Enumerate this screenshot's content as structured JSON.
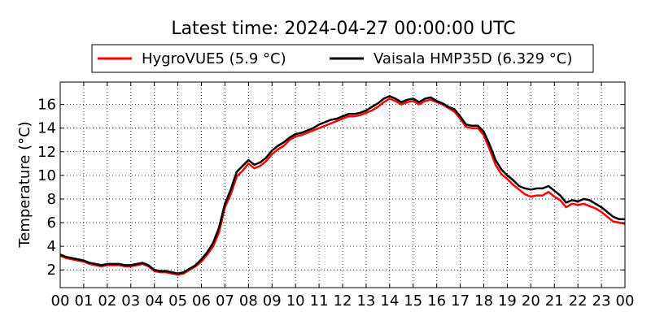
{
  "chart_data": {
    "type": "line",
    "title": "Latest time: 2024-04-27 00:00:00 UTC",
    "ylabel": "Temperature (°C)",
    "xlabel": "",
    "xlim": [
      0,
      24
    ],
    "ylim": [
      0.5,
      17.9
    ],
    "x_ticks": [
      "00",
      "01",
      "02",
      "03",
      "04",
      "05",
      "06",
      "07",
      "08",
      "09",
      "10",
      "11",
      "12",
      "13",
      "14",
      "15",
      "16",
      "17",
      "18",
      "19",
      "20",
      "21",
      "22",
      "23",
      "00"
    ],
    "y_ticks": [
      2,
      4,
      6,
      8,
      10,
      12,
      14,
      16
    ],
    "grid": true,
    "legend_position": "top",
    "series": [
      {
        "name": "HygroVUE5 (5.9 °C)",
        "color": "#ff0000",
        "x": [
          0,
          0.25,
          0.5,
          0.75,
          1,
          1.25,
          1.5,
          1.75,
          2,
          2.25,
          2.5,
          2.75,
          3,
          3.25,
          3.5,
          3.75,
          4,
          4.25,
          4.5,
          4.75,
          5,
          5.25,
          5.5,
          5.75,
          6,
          6.25,
          6.5,
          6.75,
          7,
          7.25,
          7.5,
          7.75,
          8,
          8.25,
          8.5,
          8.75,
          9,
          9.25,
          9.5,
          9.75,
          10,
          10.25,
          10.5,
          10.75,
          11,
          11.25,
          11.5,
          11.75,
          12,
          12.25,
          12.5,
          12.75,
          13,
          13.25,
          13.5,
          13.75,
          14,
          14.25,
          14.5,
          14.75,
          15,
          15.25,
          15.5,
          15.75,
          16,
          16.25,
          16.5,
          16.75,
          17,
          17.25,
          17.5,
          17.75,
          18,
          18.25,
          18.5,
          18.75,
          19,
          19.25,
          19.5,
          19.75,
          20,
          20.25,
          20.5,
          20.75,
          21,
          21.25,
          21.5,
          21.75,
          22,
          22.25,
          22.5,
          22.75,
          23,
          23.25,
          23.5,
          23.75,
          24
        ],
        "values": [
          3.2,
          3.0,
          2.9,
          2.8,
          2.7,
          2.5,
          2.4,
          2.3,
          2.4,
          2.4,
          2.4,
          2.3,
          2.3,
          2.4,
          2.5,
          2.3,
          1.9,
          1.8,
          1.8,
          1.7,
          1.6,
          1.7,
          2.0,
          2.3,
          2.7,
          3.3,
          4.0,
          5.2,
          7.3,
          8.4,
          9.9,
          10.4,
          11.0,
          10.6,
          10.8,
          11.2,
          11.8,
          12.2,
          12.5,
          13.0,
          13.3,
          13.4,
          13.6,
          13.8,
          14.0,
          14.2,
          14.4,
          14.6,
          14.8,
          15.0,
          15.0,
          15.1,
          15.3,
          15.5,
          15.8,
          16.2,
          16.5,
          16.3,
          16.0,
          16.2,
          16.3,
          16.0,
          16.3,
          16.4,
          16.2,
          16.0,
          15.7,
          15.4,
          14.8,
          14.1,
          14.0,
          14.0,
          13.4,
          12.2,
          10.9,
          10.1,
          9.7,
          9.2,
          8.8,
          8.4,
          8.2,
          8.3,
          8.3,
          8.6,
          8.2,
          7.9,
          7.3,
          7.6,
          7.5,
          7.6,
          7.4,
          7.2,
          6.9,
          6.5,
          6.1,
          6.0,
          5.9
        ]
      },
      {
        "name": "Vaisala HMP35D (6.329 °C)",
        "color": "#000000",
        "x": [
          0,
          0.25,
          0.5,
          0.75,
          1,
          1.25,
          1.5,
          1.75,
          2,
          2.25,
          2.5,
          2.75,
          3,
          3.25,
          3.5,
          3.75,
          4,
          4.25,
          4.5,
          4.75,
          5,
          5.25,
          5.5,
          5.75,
          6,
          6.25,
          6.5,
          6.75,
          7,
          7.25,
          7.5,
          7.75,
          8,
          8.25,
          8.5,
          8.75,
          9,
          9.25,
          9.5,
          9.75,
          10,
          10.25,
          10.5,
          10.75,
          11,
          11.25,
          11.5,
          11.75,
          12,
          12.25,
          12.5,
          12.75,
          13,
          13.25,
          13.5,
          13.75,
          14,
          14.25,
          14.5,
          14.75,
          15,
          15.25,
          15.5,
          15.75,
          16,
          16.25,
          16.5,
          16.75,
          17,
          17.25,
          17.5,
          17.75,
          18,
          18.25,
          18.5,
          18.75,
          19,
          19.25,
          19.5,
          19.75,
          20,
          20.25,
          20.5,
          20.75,
          21,
          21.25,
          21.5,
          21.75,
          22,
          22.25,
          22.5,
          22.75,
          23,
          23.25,
          23.5,
          23.75,
          24
        ],
        "values": [
          3.3,
          3.1,
          3.0,
          2.9,
          2.8,
          2.6,
          2.5,
          2.4,
          2.5,
          2.5,
          2.5,
          2.4,
          2.4,
          2.5,
          2.6,
          2.4,
          2.0,
          1.9,
          1.9,
          1.8,
          1.7,
          1.8,
          2.1,
          2.4,
          2.9,
          3.5,
          4.3,
          5.6,
          7.6,
          8.8,
          10.3,
          10.8,
          11.3,
          10.9,
          11.1,
          11.5,
          12.1,
          12.5,
          12.8,
          13.2,
          13.5,
          13.6,
          13.8,
          14.0,
          14.3,
          14.5,
          14.7,
          14.8,
          15.0,
          15.2,
          15.2,
          15.3,
          15.5,
          15.8,
          16.1,
          16.5,
          16.7,
          16.5,
          16.2,
          16.4,
          16.5,
          16.2,
          16.5,
          16.6,
          16.3,
          16.1,
          15.8,
          15.6,
          15.0,
          14.3,
          14.2,
          14.2,
          13.7,
          12.6,
          11.3,
          10.5,
          10.0,
          9.6,
          9.1,
          8.9,
          8.8,
          8.9,
          8.9,
          9.1,
          8.7,
          8.3,
          7.7,
          7.9,
          7.8,
          8.0,
          7.9,
          7.6,
          7.3,
          6.9,
          6.5,
          6.3,
          6.3
        ]
      }
    ]
  }
}
